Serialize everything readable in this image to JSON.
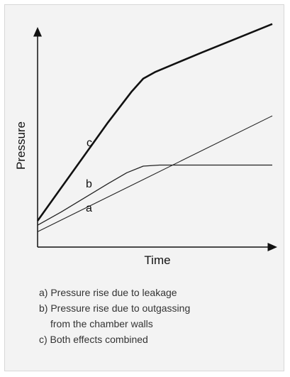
{
  "chart_data": {
    "type": "line",
    "xlabel": "Time",
    "ylabel": "Pressure",
    "xlim": [
      0,
      1
    ],
    "ylim": [
      0,
      1
    ],
    "grid": false,
    "series": [
      {
        "name": "a",
        "color": "#222222",
        "x": [
          0,
          1
        ],
        "y": [
          0.07,
          0.6
        ]
      },
      {
        "name": "b",
        "color": "#222222",
        "x": [
          0,
          0.1,
          0.2,
          0.3,
          0.38,
          0.45,
          0.52,
          0.6,
          0.7,
          0.85,
          1.0
        ],
        "y": [
          0.1,
          0.16,
          0.225,
          0.29,
          0.34,
          0.37,
          0.375,
          0.375,
          0.375,
          0.375,
          0.375
        ]
      },
      {
        "name": "c",
        "color": "#111111",
        "x": [
          0,
          0.1,
          0.2,
          0.3,
          0.4,
          0.45,
          0.5,
          0.6,
          0.7,
          0.85,
          1.0
        ],
        "y": [
          0.12,
          0.27,
          0.42,
          0.57,
          0.71,
          0.77,
          0.8,
          0.845,
          0.89,
          0.955,
          1.02
        ]
      }
    ]
  },
  "legend": {
    "a": "a)  Pressure rise due to leakage",
    "b1": "b)  Pressure rise due to outgassing",
    "b2": "from the chamber walls",
    "c": "c)  Both effects combined"
  }
}
